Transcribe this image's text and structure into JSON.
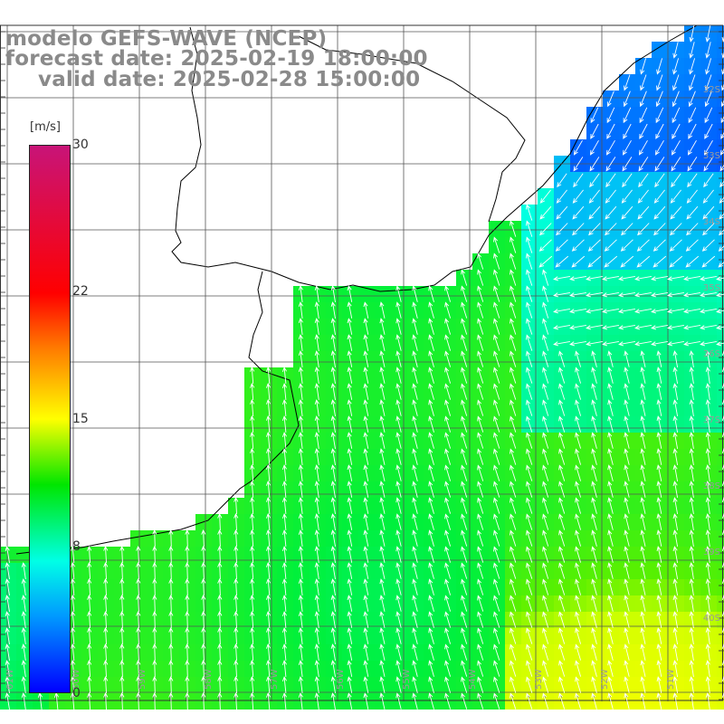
{
  "header": {
    "line1": "modelo GEFS-WAVE (NCEP)",
    "line2": "forecast date: 2025-02-19 18:00:00",
    "line3": "valid date: 2025-02-28 15:00:00"
  },
  "colorbar": {
    "unit": "[m/s]",
    "ticks": [
      {
        "label": "30",
        "value": 30
      },
      {
        "label": "22",
        "value": 22
      },
      {
        "label": "15",
        "value": 15
      },
      {
        "label": "8",
        "value": 8
      },
      {
        "label": "0",
        "value": 0
      }
    ],
    "min": 0,
    "max": 30
  },
  "map": {
    "land_color": "#ffffff",
    "grid_color": "#555555",
    "coast_color": "#000000",
    "arrow_color": "#ffffff",
    "right_labels": [
      "32S",
      "33S",
      "34S",
      "35S",
      "36S",
      "37S",
      "38S",
      "39S",
      "40S"
    ],
    "bottom_labels": [
      "61W",
      "60W",
      "59W",
      "58W",
      "57W",
      "56W",
      "55W",
      "54W",
      "53W",
      "52W",
      "51W"
    ]
  }
}
